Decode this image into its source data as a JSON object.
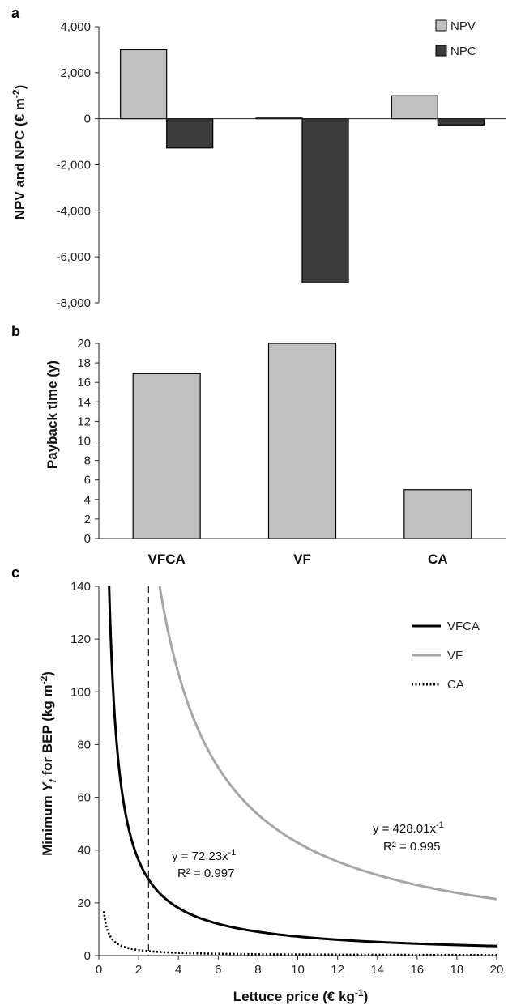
{
  "chart_data": [
    {
      "panel": "a",
      "type": "bar",
      "categories": [
        "VFCA",
        "VF",
        "CA"
      ],
      "series": [
        {
          "name": "NPV",
          "values": [
            3000,
            30,
            1000
          ],
          "color": "#c0c0c0"
        },
        {
          "name": "NPC",
          "values": [
            -1270,
            -7130,
            -270
          ],
          "color": "#3c3c3c"
        }
      ],
      "ylabel_main": "NPV and NPC (€ m",
      "ylabel_sup": "-2",
      "ylabel_end": ")",
      "ylim": [
        -8000,
        4000
      ],
      "yticks": [
        4000,
        2000,
        0,
        -2000,
        -4000,
        -6000,
        -8000
      ],
      "ytick_labels": [
        "4,000",
        "2,000",
        "0",
        "-2,000",
        "-4,000",
        "-6,000",
        "-8,000"
      ],
      "legend_position": "top-right",
      "grid": false
    },
    {
      "panel": "b",
      "type": "bar",
      "categories": [
        "VFCA",
        "VF",
        "CA"
      ],
      "values": [
        16.9,
        20,
        5
      ],
      "color": "#c0c0c0",
      "ylabel": "Payback time (y)",
      "ylim": [
        0,
        20
      ],
      "yticks": [
        0,
        2,
        4,
        6,
        8,
        10,
        12,
        14,
        16,
        18,
        20
      ],
      "grid": false
    },
    {
      "panel": "c",
      "type": "line",
      "series": [
        {
          "name": "VFCA",
          "coefficient": 72.23,
          "color": "#000000",
          "style": "solid"
        },
        {
          "name": "VF",
          "coefficient": 428.01,
          "color": "#a6a6a6",
          "style": "solid"
        },
        {
          "name": "CA",
          "coefficient": 4.2,
          "color": "#000000",
          "style": "dotted"
        }
      ],
      "reference_line_x": 2.5,
      "xlabel_main": "Lettuce price (€ kg",
      "xlabel_sup": "-1",
      "xlabel_end": ")",
      "ylabel_pre": "Minimum ",
      "ylabel_var": "Y",
      "ylabel_sub": "f",
      "ylabel_post": " for BEP (kg m",
      "ylabel_sup": "-2",
      "ylabel_end": ")",
      "xlim": [
        0,
        20
      ],
      "ylim": [
        0,
        140
      ],
      "xticks": [
        0,
        2,
        4,
        6,
        8,
        10,
        12,
        14,
        16,
        18,
        20
      ],
      "yticks": [
        0,
        20,
        40,
        60,
        80,
        100,
        120,
        140
      ],
      "annotations": [
        {
          "equation_base": "y = 72.23x",
          "equation_sup": "-1",
          "r2": "R² = 0.997"
        },
        {
          "equation_base": "y = 428.01x",
          "equation_sup": "-1",
          "r2": "R² = 0.995"
        }
      ],
      "legend_position": "top-right",
      "grid": false
    }
  ]
}
